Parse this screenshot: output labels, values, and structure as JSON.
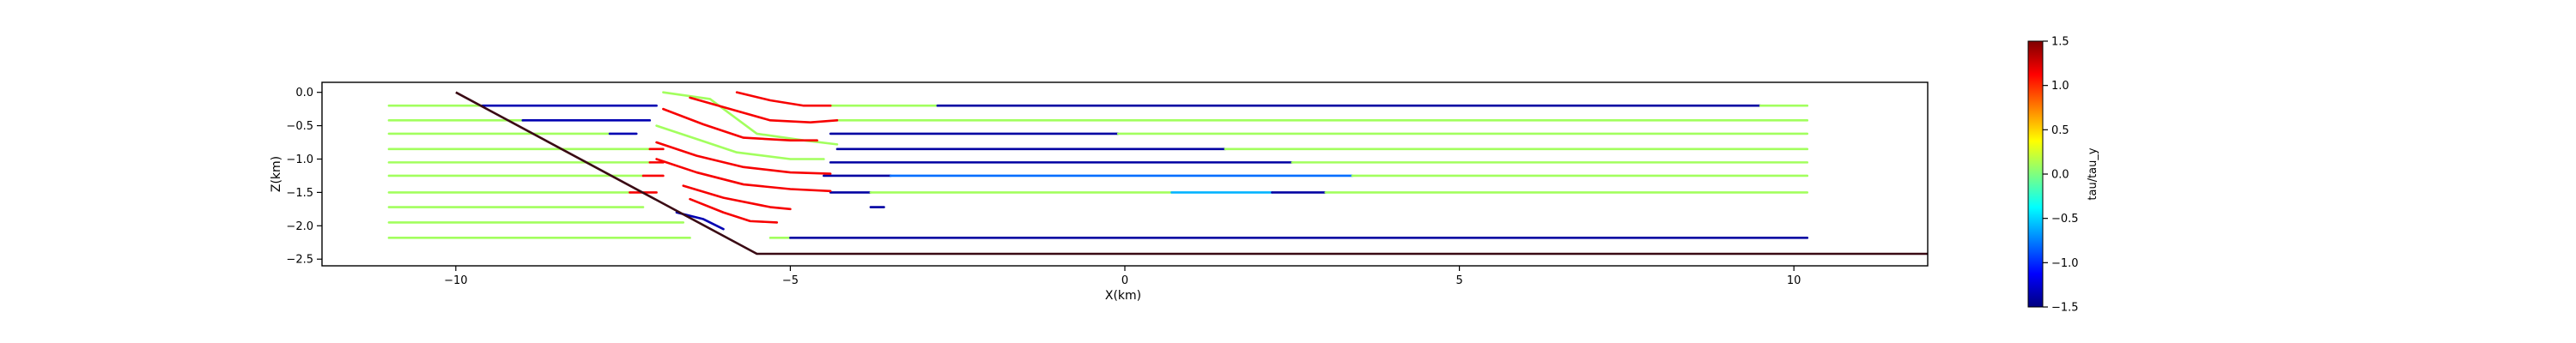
{
  "chart_data": {
    "type": "line",
    "title": "",
    "xlabel": "X(km)",
    "ylabel": "Z(km)",
    "xlim": [
      -12,
      12
    ],
    "ylim": [
      -2.6,
      0.15
    ],
    "xticks": [
      -10,
      -5,
      0,
      5,
      10
    ],
    "xtick_labels": [
      "−10",
      "−5",
      "0",
      "5",
      "10"
    ],
    "yticks": [
      0.0,
      -0.5,
      -1.0,
      -1.5,
      -2.0,
      -2.5
    ],
    "ytick_labels": [
      "0.0",
      "−0.5",
      "−1.0",
      "−1.5",
      "−2.0",
      "−2.5"
    ],
    "grid": false,
    "fault": {
      "color": "#3a0a14",
      "points": [
        [
          -10.0,
          0.0
        ],
        [
          -5.5,
          -2.42
        ],
        [
          12.0,
          -2.42
        ]
      ]
    },
    "colorbar": {
      "label": "tau/tau_y",
      "min": -1.5,
      "max": 1.5,
      "ticks": [
        1.5,
        1.0,
        0.5,
        0.0,
        -0.5,
        -1.0,
        -1.5
      ],
      "tick_labels": [
        "1.5",
        "1.0",
        "0.5",
        "0.0",
        "−0.5",
        "−1.0",
        "−1.5"
      ],
      "colormap": "jet"
    },
    "segments": [
      {
        "z": -0.2,
        "x0": -11.0,
        "x1": -9.6,
        "value": 0.1
      },
      {
        "z": -0.2,
        "x0": -9.6,
        "x1": -7.0,
        "value": -1.35
      },
      {
        "z": -0.2,
        "x0": -4.4,
        "x1": -2.8,
        "value": 0.1
      },
      {
        "z": -0.2,
        "x0": -2.8,
        "x1": 9.5,
        "value": -1.4
      },
      {
        "z": -0.2,
        "x0": 9.5,
        "x1": 10.2,
        "value": 0.1
      },
      {
        "z": -0.42,
        "x0": -11.0,
        "x1": -9.0,
        "value": 0.1
      },
      {
        "z": -0.42,
        "x0": -9.0,
        "x1": -7.1,
        "value": -1.35
      },
      {
        "z": -0.42,
        "x0": -4.3,
        "x1": 10.2,
        "value": 0.1
      },
      {
        "z": -0.62,
        "x0": -11.0,
        "x1": -7.7,
        "value": 0.1
      },
      {
        "z": -0.62,
        "x0": -7.7,
        "x1": -7.3,
        "value": -1.35
      },
      {
        "z": -0.62,
        "x0": -4.4,
        "x1": -0.1,
        "value": -1.4
      },
      {
        "z": -0.62,
        "x0": -0.1,
        "x1": 10.2,
        "value": 0.1
      },
      {
        "z": -0.85,
        "x0": -11.0,
        "x1": -7.1,
        "value": 0.1
      },
      {
        "z": -0.85,
        "x0": -7.1,
        "x1": -6.9,
        "value": 1.15
      },
      {
        "z": -0.85,
        "x0": -4.3,
        "x1": 1.5,
        "value": -1.4
      },
      {
        "z": -0.85,
        "x0": 1.5,
        "x1": 10.2,
        "value": 0.1
      },
      {
        "z": -1.05,
        "x0": -11.0,
        "x1": -7.1,
        "value": 0.1
      },
      {
        "z": -1.05,
        "x0": -7.1,
        "x1": -6.9,
        "value": 1.15
      },
      {
        "z": -1.05,
        "x0": -4.4,
        "x1": 2.5,
        "value": -1.4
      },
      {
        "z": -1.05,
        "x0": 2.5,
        "x1": 10.2,
        "value": 0.1
      },
      {
        "z": -1.25,
        "x0": -11.0,
        "x1": -7.2,
        "value": 0.1
      },
      {
        "z": -1.25,
        "x0": -7.2,
        "x1": -6.9,
        "value": 1.15
      },
      {
        "z": -1.25,
        "x0": -4.5,
        "x1": -3.5,
        "value": -1.4
      },
      {
        "z": -1.25,
        "x0": -3.5,
        "x1": 3.4,
        "value": -0.8
      },
      {
        "z": -1.25,
        "x0": 3.4,
        "x1": 10.2,
        "value": 0.1
      },
      {
        "z": -1.5,
        "x0": -11.0,
        "x1": -7.4,
        "value": 0.1
      },
      {
        "z": -1.5,
        "x0": -7.4,
        "x1": -7.0,
        "value": 1.15
      },
      {
        "z": -1.5,
        "x0": -4.4,
        "x1": -3.8,
        "value": -1.4
      },
      {
        "z": -1.5,
        "x0": -3.8,
        "x1": 0.7,
        "value": 0.1
      },
      {
        "z": -1.5,
        "x0": 0.7,
        "x1": 2.2,
        "value": -0.6
      },
      {
        "z": -1.5,
        "x0": 2.2,
        "x1": 3.0,
        "value": -1.4
      },
      {
        "z": -1.5,
        "x0": 3.0,
        "x1": 10.2,
        "value": 0.1
      },
      {
        "z": -1.72,
        "x0": -11.0,
        "x1": -7.2,
        "value": 0.1
      },
      {
        "z": -1.72,
        "x0": -3.8,
        "x1": -3.6,
        "value": -1.4
      },
      {
        "z": -1.95,
        "x0": -11.0,
        "x1": -6.6,
        "value": 0.1
      },
      {
        "z": -2.18,
        "x0": -11.0,
        "x1": -6.5,
        "value": 0.1
      },
      {
        "z": -2.18,
        "x0": -5.3,
        "x1": -5.0,
        "value": 0.1
      },
      {
        "z": -2.18,
        "x0": -5.0,
        "x1": 10.2,
        "value": -1.4
      }
    ],
    "curves": [
      {
        "value": 0.1,
        "points": [
          [
            -6.9,
            0.0
          ],
          [
            -6.2,
            -0.1
          ],
          [
            -5.5,
            -0.62
          ],
          [
            -4.8,
            -0.72
          ],
          [
            -4.3,
            -0.78
          ]
        ]
      },
      {
        "value": 1.15,
        "points": [
          [
            -5.8,
            0.0
          ],
          [
            -5.3,
            -0.12
          ],
          [
            -4.8,
            -0.2
          ],
          [
            -4.4,
            -0.2
          ]
        ]
      },
      {
        "value": 1.15,
        "points": [
          [
            -6.5,
            -0.08
          ],
          [
            -5.9,
            -0.25
          ],
          [
            -5.3,
            -0.42
          ],
          [
            -4.7,
            -0.45
          ],
          [
            -4.3,
            -0.42
          ]
        ]
      },
      {
        "value": 1.15,
        "points": [
          [
            -6.9,
            -0.25
          ],
          [
            -6.3,
            -0.48
          ],
          [
            -5.7,
            -0.68
          ],
          [
            -5.0,
            -0.72
          ],
          [
            -4.6,
            -0.72
          ]
        ]
      },
      {
        "value": 0.1,
        "points": [
          [
            -7.0,
            -0.5
          ],
          [
            -6.4,
            -0.7
          ],
          [
            -5.8,
            -0.9
          ],
          [
            -5.0,
            -1.0
          ],
          [
            -4.5,
            -1.0
          ]
        ]
      },
      {
        "value": 1.15,
        "points": [
          [
            -7.0,
            -0.75
          ],
          [
            -6.4,
            -0.95
          ],
          [
            -5.7,
            -1.12
          ],
          [
            -5.0,
            -1.2
          ],
          [
            -4.4,
            -1.22
          ]
        ]
      },
      {
        "value": 1.15,
        "points": [
          [
            -7.0,
            -1.0
          ],
          [
            -6.4,
            -1.2
          ],
          [
            -5.7,
            -1.38
          ],
          [
            -5.0,
            -1.45
          ],
          [
            -4.4,
            -1.48
          ]
        ]
      },
      {
        "value": 1.15,
        "points": [
          [
            -6.6,
            -1.4
          ],
          [
            -6.0,
            -1.58
          ],
          [
            -5.3,
            -1.72
          ],
          [
            -5.0,
            -1.75
          ]
        ]
      },
      {
        "value": 1.15,
        "points": [
          [
            -6.5,
            -1.6
          ],
          [
            -6.0,
            -1.8
          ],
          [
            -5.6,
            -1.93
          ],
          [
            -5.2,
            -1.95
          ]
        ]
      },
      {
        "value": -1.35,
        "points": [
          [
            -6.7,
            -1.8
          ],
          [
            -6.3,
            -1.9
          ],
          [
            -6.0,
            -2.05
          ]
        ]
      }
    ]
  }
}
